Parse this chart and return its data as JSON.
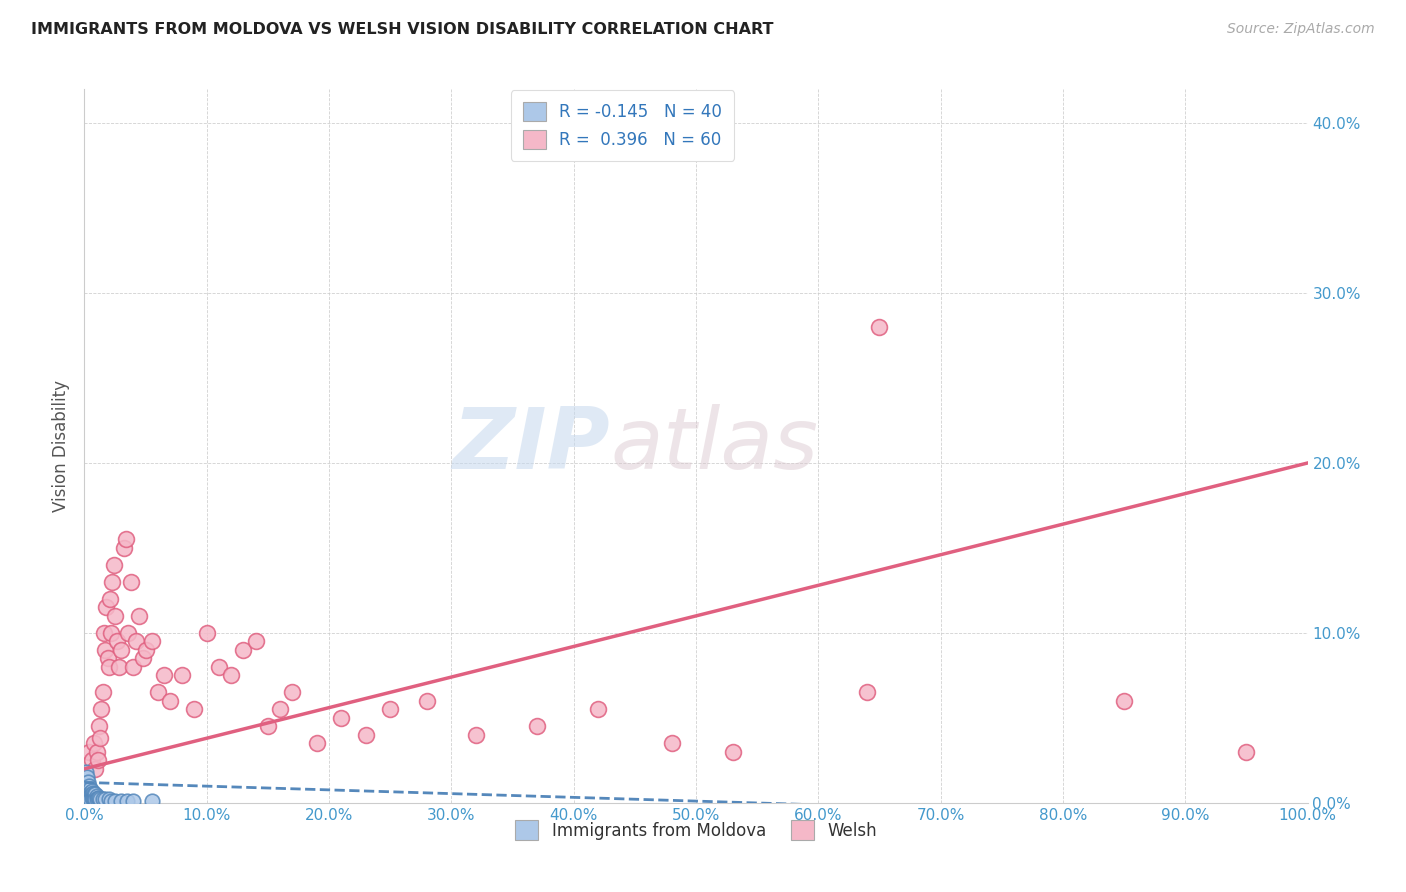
{
  "title": "IMMIGRANTS FROM MOLDOVA VS WELSH VISION DISABILITY CORRELATION CHART",
  "source": "Source: ZipAtlas.com",
  "ylabel": "Vision Disability",
  "xlim": [
    0.0,
    1.0
  ],
  "ylim": [
    0.0,
    0.42
  ],
  "x_ticks": [
    0.0,
    0.1,
    0.2,
    0.3,
    0.4,
    0.5,
    0.6,
    0.7,
    0.8,
    0.9,
    1.0
  ],
  "y_ticks": [
    0.0,
    0.1,
    0.2,
    0.3,
    0.4
  ],
  "blue_R": -0.145,
  "blue_N": 40,
  "pink_R": 0.396,
  "pink_N": 60,
  "blue_color": "#adc8e8",
  "pink_color": "#f5b8c8",
  "blue_line_color": "#5588bb",
  "pink_line_color": "#e06080",
  "background_color": "#ffffff",
  "watermark_zip": "ZIP",
  "watermark_atlas": "atlas",
  "blue_scatter_x": [
    0.001,
    0.001,
    0.001,
    0.002,
    0.002,
    0.002,
    0.003,
    0.003,
    0.003,
    0.003,
    0.004,
    0.004,
    0.004,
    0.005,
    0.005,
    0.005,
    0.005,
    0.006,
    0.006,
    0.006,
    0.007,
    0.007,
    0.008,
    0.008,
    0.009,
    0.009,
    0.01,
    0.01,
    0.011,
    0.012,
    0.013,
    0.015,
    0.017,
    0.02,
    0.022,
    0.025,
    0.03,
    0.035,
    0.04,
    0.055
  ],
  "blue_scatter_y": [
    0.018,
    0.01,
    0.005,
    0.015,
    0.008,
    0.004,
    0.012,
    0.008,
    0.005,
    0.003,
    0.01,
    0.006,
    0.003,
    0.008,
    0.006,
    0.004,
    0.002,
    0.007,
    0.005,
    0.003,
    0.006,
    0.003,
    0.005,
    0.003,
    0.005,
    0.002,
    0.004,
    0.002,
    0.003,
    0.003,
    0.002,
    0.002,
    0.002,
    0.002,
    0.001,
    0.001,
    0.001,
    0.001,
    0.001,
    0.001
  ],
  "pink_scatter_x": [
    0.004,
    0.006,
    0.008,
    0.009,
    0.01,
    0.011,
    0.012,
    0.013,
    0.014,
    0.015,
    0.016,
    0.017,
    0.018,
    0.019,
    0.02,
    0.021,
    0.022,
    0.023,
    0.024,
    0.025,
    0.027,
    0.028,
    0.03,
    0.032,
    0.034,
    0.036,
    0.038,
    0.04,
    0.042,
    0.045,
    0.048,
    0.05,
    0.055,
    0.06,
    0.065,
    0.07,
    0.08,
    0.09,
    0.1,
    0.11,
    0.12,
    0.13,
    0.14,
    0.15,
    0.16,
    0.17,
    0.19,
    0.21,
    0.23,
    0.25,
    0.28,
    0.32,
    0.37,
    0.42,
    0.48,
    0.53,
    0.64,
    0.65,
    0.85,
    0.95
  ],
  "pink_scatter_y": [
    0.03,
    0.025,
    0.035,
    0.02,
    0.03,
    0.025,
    0.045,
    0.038,
    0.055,
    0.065,
    0.1,
    0.09,
    0.115,
    0.085,
    0.08,
    0.12,
    0.1,
    0.13,
    0.14,
    0.11,
    0.095,
    0.08,
    0.09,
    0.15,
    0.155,
    0.1,
    0.13,
    0.08,
    0.095,
    0.11,
    0.085,
    0.09,
    0.095,
    0.065,
    0.075,
    0.06,
    0.075,
    0.055,
    0.1,
    0.08,
    0.075,
    0.09,
    0.095,
    0.045,
    0.055,
    0.065,
    0.035,
    0.05,
    0.04,
    0.055,
    0.06,
    0.04,
    0.045,
    0.055,
    0.035,
    0.03,
    0.065,
    0.28,
    0.06,
    0.03
  ]
}
